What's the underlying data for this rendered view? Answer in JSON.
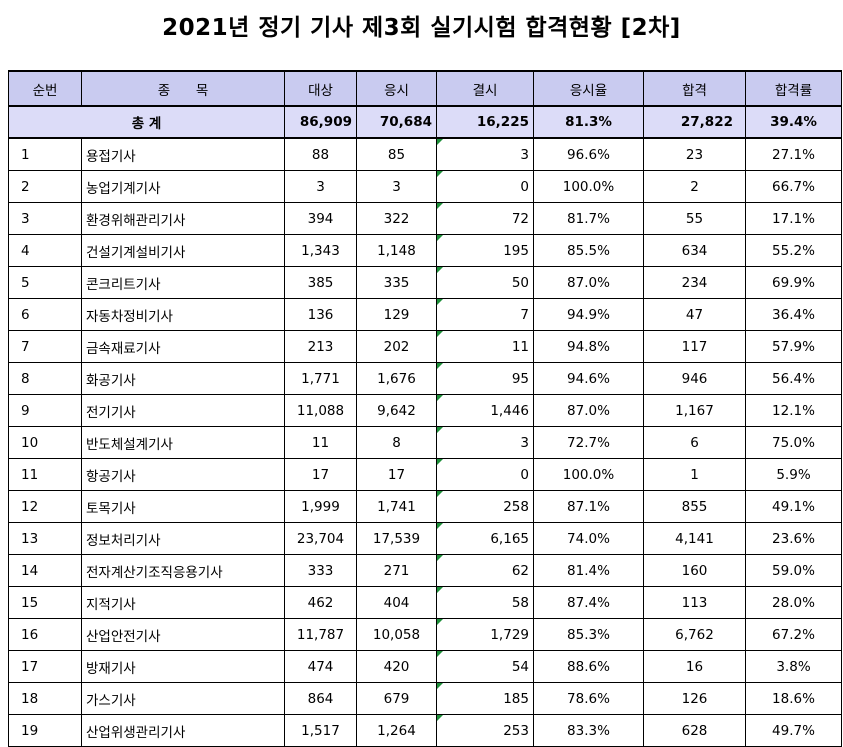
{
  "title": "2021년 정기 기사 제3회 실기시험 합격현황 [2차]",
  "headers": [
    "순번",
    "종      목",
    "대상",
    "응시",
    "결시",
    "응시율",
    "합격",
    "합격률"
  ],
  "total": {
    "label": "총 계",
    "target": "86,909",
    "applied": "70,684",
    "absent": "16,225",
    "rate": "81.3%",
    "passed": "27,822",
    "pass_rate": "39.4%"
  },
  "rows": [
    {
      "no": "1",
      "name": "용접기사",
      "target": "88",
      "applied": "85",
      "absent": "3",
      "rate": "96.6%",
      "passed": "23",
      "pass_rate": "27.1%"
    },
    {
      "no": "2",
      "name": "농업기계기사",
      "target": "3",
      "applied": "3",
      "absent": "0",
      "rate": "100.0%",
      "passed": "2",
      "pass_rate": "66.7%"
    },
    {
      "no": "3",
      "name": "환경위해관리기사",
      "target": "394",
      "applied": "322",
      "absent": "72",
      "rate": "81.7%",
      "passed": "55",
      "pass_rate": "17.1%"
    },
    {
      "no": "4",
      "name": "건설기계설비기사",
      "target": "1,343",
      "applied": "1,148",
      "absent": "195",
      "rate": "85.5%",
      "passed": "634",
      "pass_rate": "55.2%"
    },
    {
      "no": "5",
      "name": "콘크리트기사",
      "target": "385",
      "applied": "335",
      "absent": "50",
      "rate": "87.0%",
      "passed": "234",
      "pass_rate": "69.9%"
    },
    {
      "no": "6",
      "name": "자동차정비기사",
      "target": "136",
      "applied": "129",
      "absent": "7",
      "rate": "94.9%",
      "passed": "47",
      "pass_rate": "36.4%"
    },
    {
      "no": "7",
      "name": "금속재료기사",
      "target": "213",
      "applied": "202",
      "absent": "11",
      "rate": "94.8%",
      "passed": "117",
      "pass_rate": "57.9%"
    },
    {
      "no": "8",
      "name": "화공기사",
      "target": "1,771",
      "applied": "1,676",
      "absent": "95",
      "rate": "94.6%",
      "passed": "946",
      "pass_rate": "56.4%"
    },
    {
      "no": "9",
      "name": "전기기사",
      "target": "11,088",
      "applied": "9,642",
      "absent": "1,446",
      "rate": "87.0%",
      "passed": "1,167",
      "pass_rate": "12.1%"
    },
    {
      "no": "10",
      "name": "반도체설계기사",
      "target": "11",
      "applied": "8",
      "absent": "3",
      "rate": "72.7%",
      "passed": "6",
      "pass_rate": "75.0%"
    },
    {
      "no": "11",
      "name": "항공기사",
      "target": "17",
      "applied": "17",
      "absent": "0",
      "rate": "100.0%",
      "passed": "1",
      "pass_rate": "5.9%"
    },
    {
      "no": "12",
      "name": "토목기사",
      "target": "1,999",
      "applied": "1,741",
      "absent": "258",
      "rate": "87.1%",
      "passed": "855",
      "pass_rate": "49.1%"
    },
    {
      "no": "13",
      "name": "정보처리기사",
      "target": "23,704",
      "applied": "17,539",
      "absent": "6,165",
      "rate": "74.0%",
      "passed": "4,141",
      "pass_rate": "23.6%"
    },
    {
      "no": "14",
      "name": "전자계산기조직응용기사",
      "target": "333",
      "applied": "271",
      "absent": "62",
      "rate": "81.4%",
      "passed": "160",
      "pass_rate": "59.0%"
    },
    {
      "no": "15",
      "name": "지적기사",
      "target": "462",
      "applied": "404",
      "absent": "58",
      "rate": "87.4%",
      "passed": "113",
      "pass_rate": "28.0%"
    },
    {
      "no": "16",
      "name": "산업안전기사",
      "target": "11,787",
      "applied": "10,058",
      "absent": "1,729",
      "rate": "85.3%",
      "passed": "6,762",
      "pass_rate": "67.2%"
    },
    {
      "no": "17",
      "name": "방재기사",
      "target": "474",
      "applied": "420",
      "absent": "54",
      "rate": "88.6%",
      "passed": "16",
      "pass_rate": "3.8%"
    },
    {
      "no": "18",
      "name": "가스기사",
      "target": "864",
      "applied": "679",
      "absent": "185",
      "rate": "78.6%",
      "passed": "126",
      "pass_rate": "18.6%"
    },
    {
      "no": "19",
      "name": "산업위생관리기사",
      "target": "1,517",
      "applied": "1,264",
      "absent": "253",
      "rate": "83.3%",
      "passed": "628",
      "pass_rate": "49.7%"
    }
  ]
}
